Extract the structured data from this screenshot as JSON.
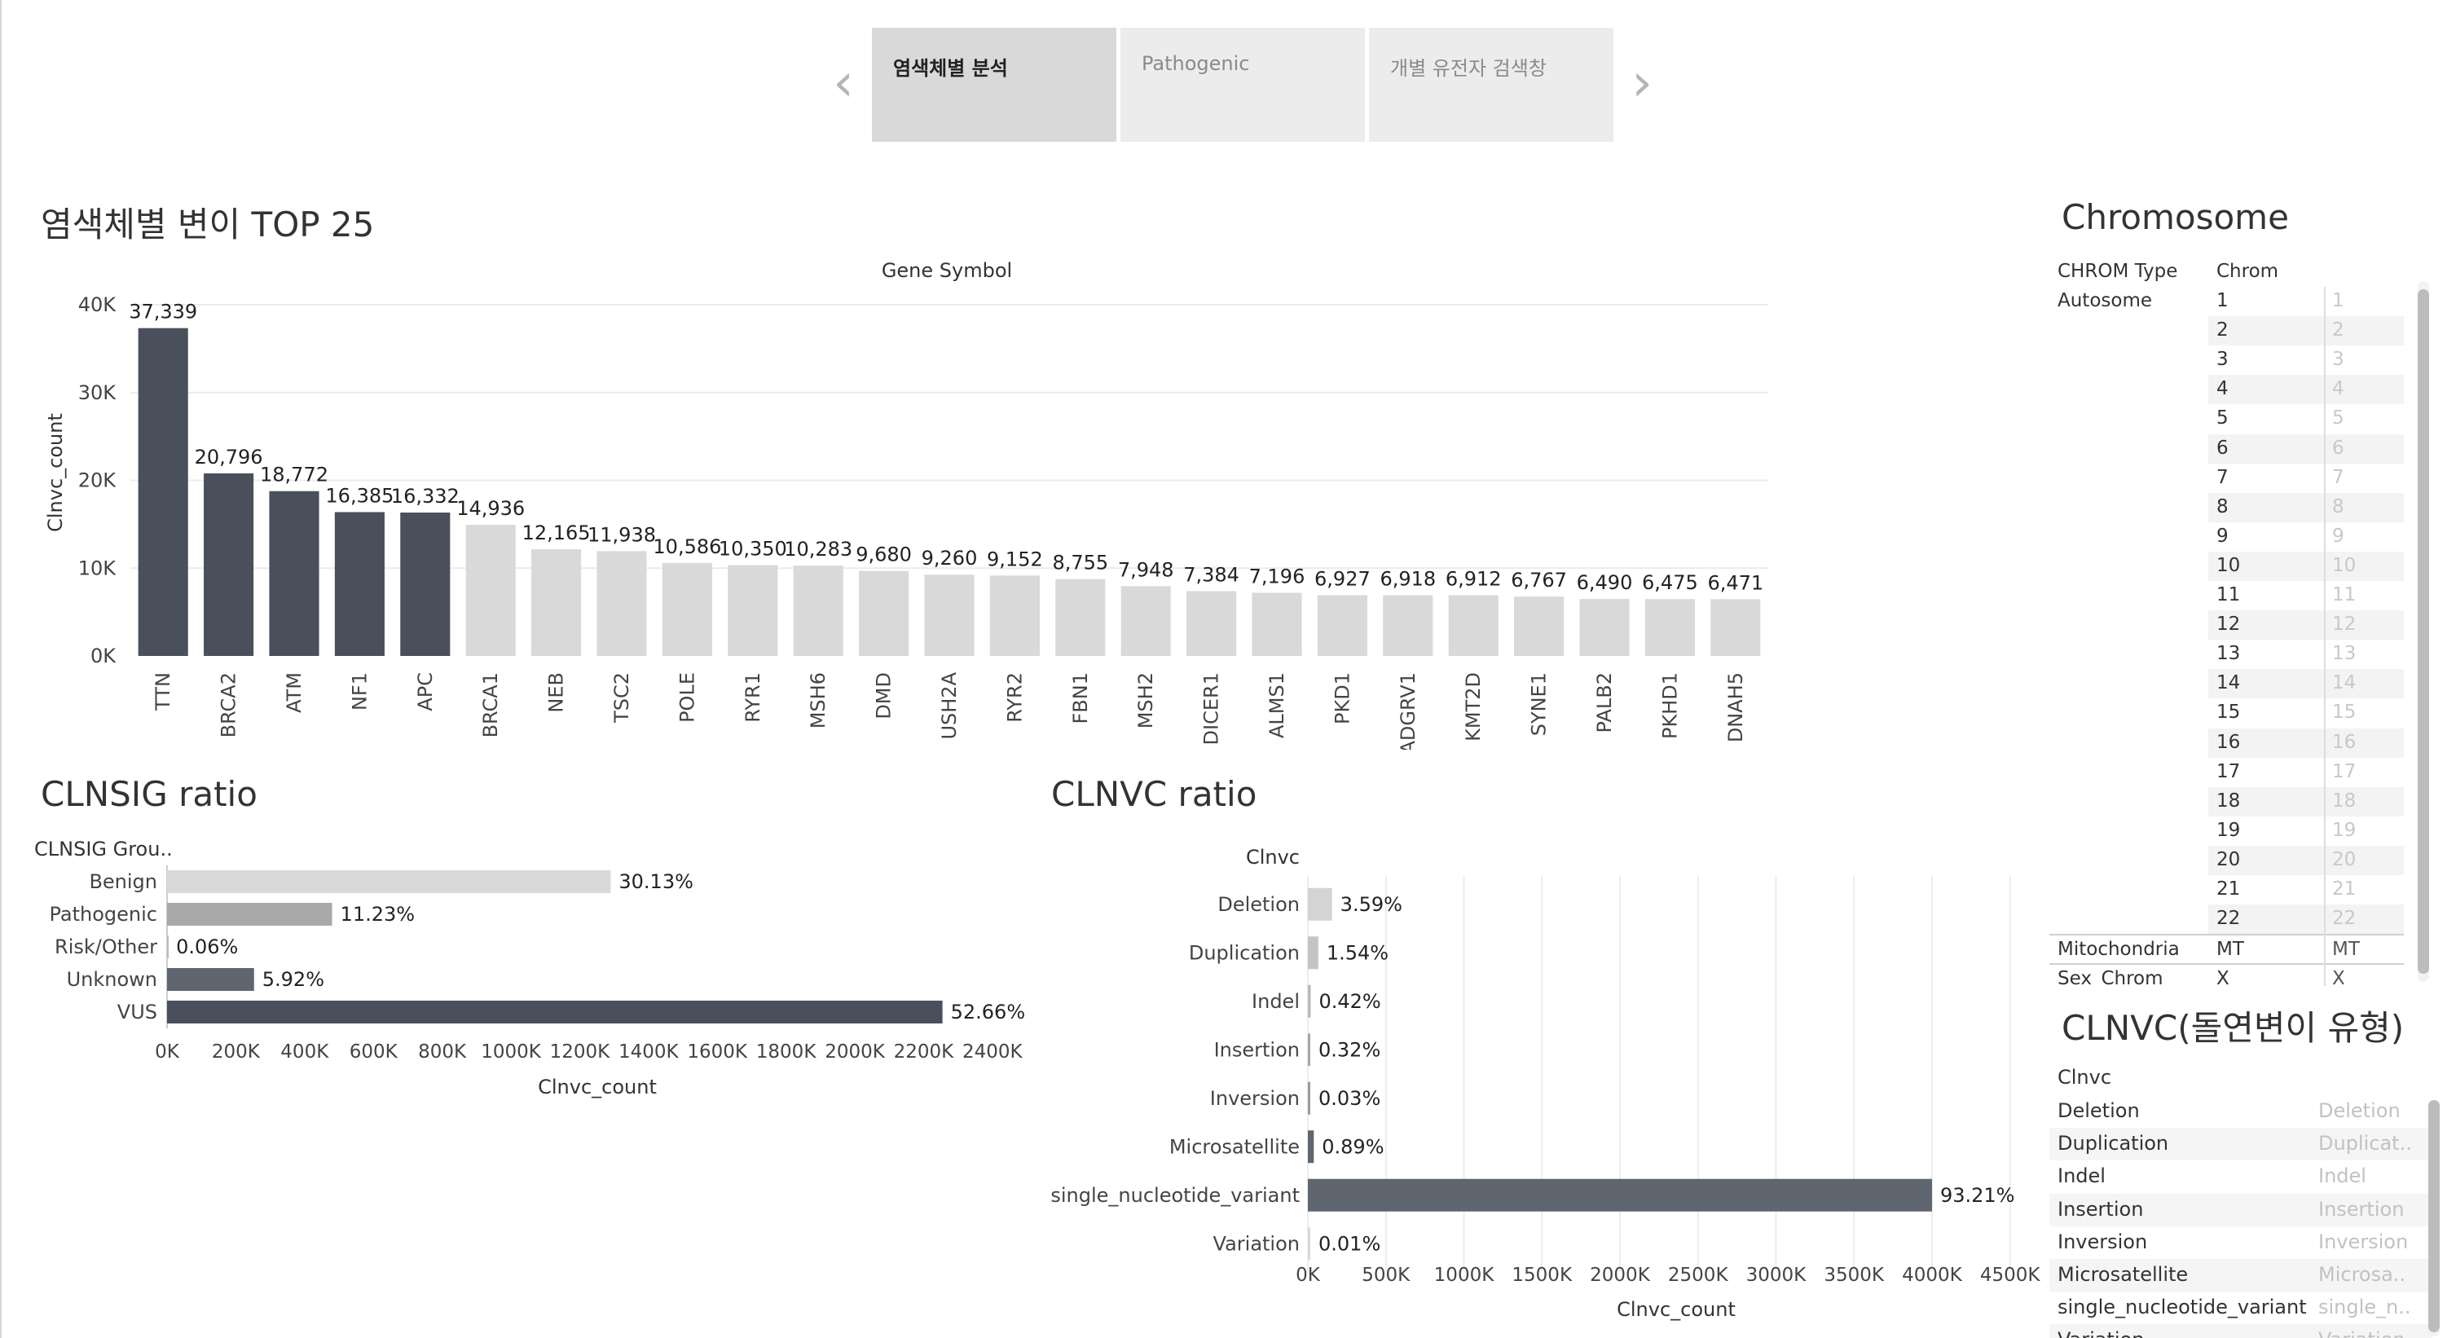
{
  "tabs": [
    {
      "label": "염색체별 분석",
      "active": true
    },
    {
      "label": "Pathogenic",
      "active": false
    },
    {
      "label": "개별 유전자 검색창",
      "active": false
    }
  ],
  "nav": {
    "prev": "‹",
    "next": "›"
  },
  "top25": {
    "title": "염색체별 변이 TOP 25"
  },
  "clnsig": {
    "title": "CLNSIG ratio"
  },
  "clnvc_chart": {
    "title": "CLNVC ratio"
  },
  "chromosome": {
    "title": "Chromosome",
    "col_type": "CHROM Type",
    "col_chrom": "Chrom",
    "groups": [
      {
        "type": "Autosome",
        "chroms": [
          "1",
          "2",
          "3",
          "4",
          "5",
          "6",
          "7",
          "8",
          "9",
          "10",
          "11",
          "12",
          "13",
          "14",
          "15",
          "16",
          "17",
          "18",
          "19",
          "20",
          "21",
          "22"
        ]
      },
      {
        "type": "Mitochondria",
        "chroms": [
          "MT"
        ]
      },
      {
        "type": "Sex_Chrom",
        "chroms": [
          "X"
        ]
      }
    ]
  },
  "clnvc_table": {
    "title": "CLNVC(돌연변이 유형)",
    "header": "Clnvc",
    "rows": [
      {
        "label": "Deletion",
        "value": "Deletion"
      },
      {
        "label": "Duplication",
        "value": "Duplicat.."
      },
      {
        "label": "Indel",
        "value": "Indel"
      },
      {
        "label": "Insertion",
        "value": "Insertion"
      },
      {
        "label": "Inversion",
        "value": "Inversion"
      },
      {
        "label": "Microsatellite",
        "value": "Microsa.."
      },
      {
        "label": "single_nucleotide_variant",
        "value": "single_n.."
      },
      {
        "label": "Variation",
        "value": "Variation"
      }
    ]
  },
  "colors": {
    "dark": "#4a505b",
    "light": "#d9d9d9",
    "mid": "#a9a9a9",
    "dark2": "#5f6670",
    "grid": "#ececec"
  },
  "chart_data": [
    {
      "type": "bar",
      "title": "염색체별 변이 TOP 25",
      "header": "Gene Symbol",
      "xlabel": "",
      "ylabel": "Clnvc_count",
      "ylim": [
        0,
        40000
      ],
      "yticks": [
        "0K",
        "10K",
        "20K",
        "30K",
        "40K"
      ],
      "ytick_values": [
        0,
        10000,
        20000,
        30000,
        40000
      ],
      "categories": [
        "TTN",
        "BRCA2",
        "ATM",
        "NF1",
        "APC",
        "BRCA1",
        "NEB",
        "TSC2",
        "POLE",
        "RYR1",
        "MSH6",
        "DMD",
        "USH2A",
        "RYR2",
        "FBN1",
        "MSH2",
        "DICER1",
        "ALMS1",
        "PKD1",
        "ADGRV1",
        "KMT2D",
        "SYNE1",
        "PALB2",
        "PKHD1",
        "DNAH5"
      ],
      "values": [
        37339,
        20796,
        18772,
        16385,
        16332,
        14936,
        12165,
        11938,
        10586,
        10350,
        10283,
        9680,
        9260,
        9152,
        8755,
        7948,
        7384,
        7196,
        6927,
        6918,
        6912,
        6767,
        6490,
        6475,
        6471
      ],
      "labels": [
        "37,339",
        "20,796",
        "18,772",
        "16,385",
        "16,332",
        "14,936",
        "12,165",
        "11,938",
        "10,586",
        "10,350",
        "10,283",
        "9,680",
        "9,260",
        "9,152",
        "8,755",
        "7,948",
        "7,384",
        "7,196",
        "6,927",
        "6,918",
        "6,912",
        "6,767",
        "6,490",
        "6,475",
        "6,471"
      ],
      "highlight_count": 5
    },
    {
      "type": "bar",
      "orientation": "horizontal",
      "title": "CLNSIG ratio",
      "header": "CLNSIG Grou..",
      "xlabel": "Clnvc_count",
      "xlim": [
        0,
        2500000
      ],
      "xticks": [
        "0K",
        "200K",
        "400K",
        "600K",
        "800K",
        "1000K",
        "1200K",
        "1400K",
        "1600K",
        "1800K",
        "2000K",
        "2200K",
        "2400K"
      ],
      "categories": [
        "Benign",
        "Pathogenic",
        "Risk/Other",
        "Unknown",
        "VUS"
      ],
      "percent": [
        30.13,
        11.23,
        0.06,
        5.92,
        52.66
      ],
      "labels": [
        "30.13%",
        "11.23%",
        "0.06%",
        "5.92%",
        "52.66%"
      ],
      "values": [
        1290000,
        480000,
        2600,
        253000,
        2255000
      ]
    },
    {
      "type": "bar",
      "orientation": "horizontal",
      "title": "CLNVC ratio",
      "header": "Clnvc",
      "xlabel": "Clnvc_count",
      "xlim": [
        0,
        4700000
      ],
      "xticks": [
        "0K",
        "500K",
        "1000K",
        "1500K",
        "2000K",
        "2500K",
        "3000K",
        "3500K",
        "4000K",
        "4500K"
      ],
      "categories": [
        "Deletion",
        "Duplication",
        "Indel",
        "Insertion",
        "Inversion",
        "Microsatellite",
        "single_nucleotide_variant",
        "Variation"
      ],
      "percent": [
        3.59,
        1.54,
        0.42,
        0.32,
        0.03,
        0.89,
        93.21,
        0.01
      ],
      "labels": [
        "3.59%",
        "1.54%",
        "0.42%",
        "0.32%",
        "0.03%",
        "0.89%",
        "93.21%",
        "0.01%"
      ],
      "values": [
        155000,
        67000,
        18000,
        14000,
        1300,
        38000,
        4000000,
        430
      ]
    }
  ]
}
